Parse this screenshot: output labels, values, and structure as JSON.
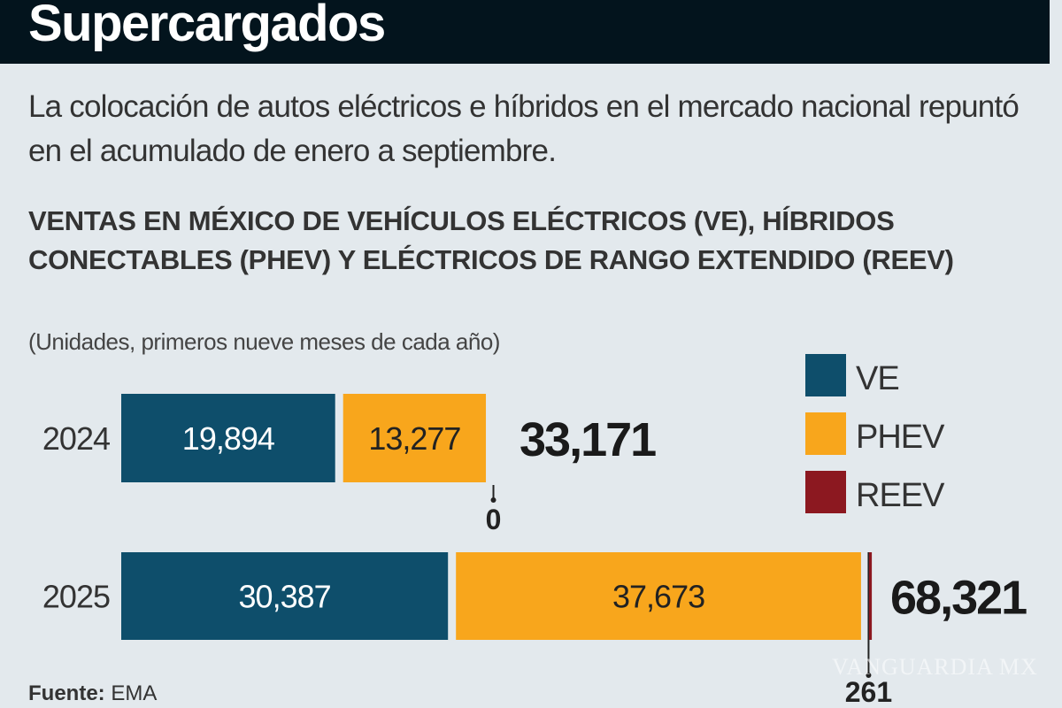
{
  "header": {
    "title": "Supercargados"
  },
  "intro": "La colocación de autos eléctricos e híbridos en el mercado nacional repuntó en el acumulado de enero a septiembre.",
  "source": {
    "label": "Fuente:",
    "value": "EMA"
  },
  "watermark": "VANGUARDIA MX",
  "chart_data": {
    "type": "bar",
    "orientation": "horizontal",
    "stacked": true,
    "title": "VENTAS EN MÉXICO DE VEHÍCULOS ELÉCTRICOS (VE), HÍBRIDOS CONECTABLES (PHEV) Y ELÉCTRICOS DE RANGO EXTENDIDO (REEV)",
    "subtitle": "(Unidades, primeros nueve meses de cada año)",
    "categories": [
      "2024",
      "2025"
    ],
    "series": [
      {
        "name": "VE",
        "values": [
          19894,
          30387
        ],
        "labels": [
          "19,894",
          "30,387"
        ],
        "color": "#0e4e6b"
      },
      {
        "name": "PHEV",
        "values": [
          13277,
          37673
        ],
        "labels": [
          "13,277",
          "37,673"
        ],
        "color": "#f8a61c"
      },
      {
        "name": "REEV",
        "values": [
          0,
          261
        ],
        "labels": [
          "0",
          "261"
        ],
        "color": "#8c1820"
      }
    ],
    "totals": [
      "33,171",
      "68,321"
    ],
    "legend": "right",
    "grid": false
  }
}
